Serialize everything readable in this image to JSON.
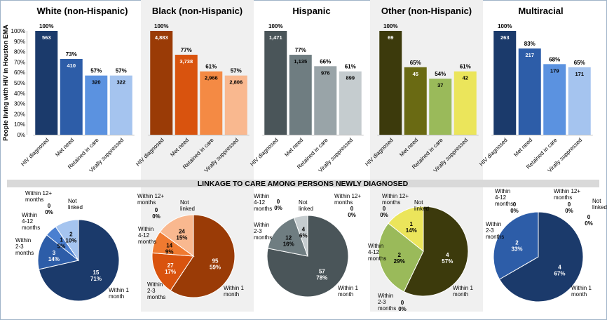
{
  "y_axis_label": "People living with HIV in Houston EMA",
  "y_ticks": [
    "0%",
    "10%",
    "20%",
    "30%",
    "40%",
    "50%",
    "60%",
    "70%",
    "80%",
    "90%",
    "100%"
  ],
  "categories": [
    "HIV diagnosed",
    "Met need",
    "Retained in care",
    "Virally suppressed"
  ],
  "banner_title": "LINKAGE TO CARE AMONG PERSONS NEWLY DIAGNOSED",
  "pie_categories": [
    "Within 1 month",
    "Within 2-3 months",
    "Within 4-12 months",
    "Within 12+ months",
    "Not linked"
  ],
  "colors": {
    "panel_bg": "#f0f0f0",
    "banner_bg": "#d9d9d9",
    "frame": "#9fb3c8"
  },
  "chart_data": [
    {
      "type": "bar",
      "title": "White (non-Hispanic)",
      "shaded": false,
      "categories": [
        "HIV diagnosed",
        "Met need",
        "Retained in care",
        "Virally suppressed"
      ],
      "percent_labels": [
        "100%",
        "73%",
        "57%",
        "57%"
      ],
      "values": [
        100,
        73,
        57,
        57
      ],
      "count_labels": [
        "563",
        "410",
        "320",
        "322"
      ],
      "colors": [
        "#1b3a6b",
        "#2d5da8",
        "#5b92e0",
        "#a5c4ef"
      ],
      "ylim": [
        0,
        100
      ]
    },
    {
      "type": "bar",
      "title": "Black (non-Hispanic)",
      "shaded": true,
      "categories": [
        "HIV diagnosed",
        "Met need",
        "Retained in care",
        "Virally suppressed"
      ],
      "percent_labels": [
        "100%",
        "77%",
        "61%",
        "57%"
      ],
      "values": [
        100,
        77,
        61,
        57
      ],
      "count_labels": [
        "4,883",
        "3,738",
        "2,966",
        "2,806"
      ],
      "colors": [
        "#9a3b06",
        "#d9530e",
        "#f48a44",
        "#f9b88f"
      ],
      "ylim": [
        0,
        100
      ]
    },
    {
      "type": "bar",
      "title": "Hispanic",
      "shaded": false,
      "categories": [
        "HIV diagnosed",
        "Met need",
        "Retained in care",
        "Virally suppressed"
      ],
      "percent_labels": [
        "100%",
        "77%",
        "66%",
        "61%"
      ],
      "values": [
        100,
        77,
        66,
        61
      ],
      "count_labels": [
        "1,471",
        "1,135",
        "976",
        "899"
      ],
      "colors": [
        "#4a5559",
        "#6f7d81",
        "#99a4a8",
        "#c5cccf"
      ],
      "ylim": [
        0,
        100
      ]
    },
    {
      "type": "bar",
      "title": "Other (non-Hispanic)",
      "shaded": true,
      "categories": [
        "HIV diagnosed",
        "Met need",
        "Retained in care",
        "Virally suppressed"
      ],
      "percent_labels": [
        "100%",
        "65%",
        "54%",
        "61%"
      ],
      "values": [
        100,
        65,
        54,
        61
      ],
      "count_labels": [
        "69",
        "45",
        "37",
        "42"
      ],
      "colors": [
        "#3c3a0c",
        "#6a6a13",
        "#9aba5a",
        "#ebe55b"
      ],
      "ylim": [
        0,
        100
      ]
    },
    {
      "type": "bar",
      "title": "Multiracial",
      "shaded": false,
      "categories": [
        "HIV diagnosed",
        "Met need",
        "Retained in care",
        "Virally suppressed"
      ],
      "percent_labels": [
        "100%",
        "83%",
        "68%",
        "65%"
      ],
      "values": [
        100,
        83,
        68,
        65
      ],
      "count_labels": [
        "263",
        "217",
        "179",
        "171"
      ],
      "colors": [
        "#1b3a6b",
        "#2d5da8",
        "#5b92e0",
        "#a5c4ef"
      ],
      "ylim": [
        0,
        100
      ]
    },
    {
      "type": "pie",
      "title": "",
      "shaded": false,
      "slices": [
        {
          "label": "Within 1 month",
          "value": 15,
          "pct": "71%",
          "color": "#1b3a6b"
        },
        {
          "label": "Within 2-3 months",
          "value": 3,
          "pct": "14%",
          "color": "#2d5da8"
        },
        {
          "label": "Within 4-12 months",
          "value": 1,
          "pct": "5%",
          "color": "#4a7fd0"
        },
        {
          "label": "Within 12+ months",
          "value": 0,
          "pct": "0%",
          "color": "#6f9ee0"
        },
        {
          "label": "Not linked",
          "value": 2,
          "pct": "10%",
          "color": "#a5c4ef"
        }
      ]
    },
    {
      "type": "pie",
      "title": "",
      "shaded": true,
      "slices": [
        {
          "label": "Within 1 month",
          "value": 95,
          "pct": "59%",
          "color": "#9a3b06"
        },
        {
          "label": "Within 2-3 months",
          "value": 27,
          "pct": "17%",
          "color": "#d9530e"
        },
        {
          "label": "Within 4-12 months",
          "value": 14,
          "pct": "9%",
          "color": "#f07a30"
        },
        {
          "label": "Within 12+ months",
          "value": 0,
          "pct": "0%",
          "color": "#f48a44"
        },
        {
          "label": "Not linked",
          "value": 24,
          "pct": "15%",
          "color": "#f9b88f"
        }
      ]
    },
    {
      "type": "pie",
      "title": "",
      "shaded": false,
      "slices": [
        {
          "label": "Within 1 month",
          "value": 57,
          "pct": "78%",
          "color": "#4a5559"
        },
        {
          "label": "Within 2-3 months",
          "value": 12,
          "pct": "16%",
          "color": "#6f7d81"
        },
        {
          "label": "Within 4-12 months",
          "value": 0,
          "pct": "0%",
          "color": "#8d999d"
        },
        {
          "label": "Within 12+ months",
          "value": 0,
          "pct": "0%",
          "color": "#99a4a8"
        },
        {
          "label": "Not linked",
          "value": 4,
          "pct": "6%",
          "color": "#c5cccf"
        }
      ]
    },
    {
      "type": "pie",
      "title": "",
      "shaded": true,
      "slices": [
        {
          "label": "Within 1 month",
          "value": 4,
          "pct": "57%",
          "color": "#3c3a0c"
        },
        {
          "label": "Within 2-3 months",
          "value": 0,
          "pct": "0%",
          "color": "#6a6a13"
        },
        {
          "label": "Within 4-12 months",
          "value": 2,
          "pct": "29%",
          "color": "#9aba5a"
        },
        {
          "label": "Within 12+ months",
          "value": 0,
          "pct": "0%",
          "color": "#c8d46a"
        },
        {
          "label": "Not linked",
          "value": 1,
          "pct": "14%",
          "color": "#ebe55b"
        }
      ]
    },
    {
      "type": "pie",
      "title": "",
      "shaded": false,
      "slices": [
        {
          "label": "Within 1 month",
          "value": 4,
          "pct": "67%",
          "color": "#1b3a6b"
        },
        {
          "label": "Within 2-3 months",
          "value": 2,
          "pct": "33%",
          "color": "#2d5da8"
        },
        {
          "label": "Within 4-12 months",
          "value": 0,
          "pct": "0%",
          "color": "#4a7fd0"
        },
        {
          "label": "Within 12+ months",
          "value": 0,
          "pct": "0%",
          "color": "#6f9ee0"
        },
        {
          "label": "Not linked",
          "value": 0,
          "pct": "0%",
          "color": "#a5c4ef"
        }
      ]
    }
  ]
}
